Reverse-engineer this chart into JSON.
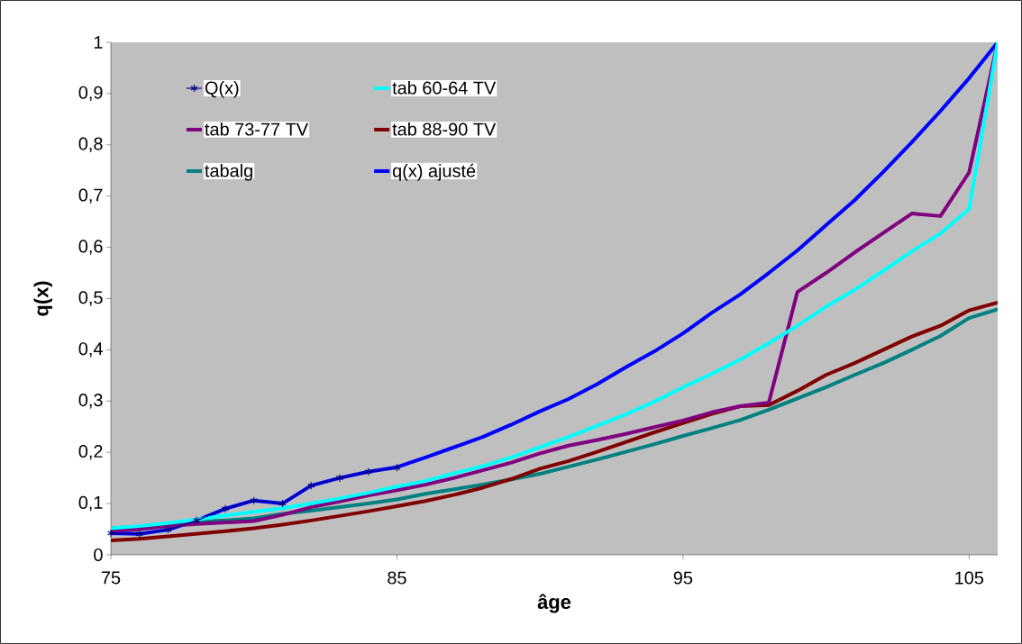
{
  "chart_data": {
    "type": "line",
    "xlabel": "âge",
    "ylabel": "q(x)",
    "x": [
      75,
      76,
      77,
      78,
      79,
      80,
      81,
      82,
      83,
      84,
      85,
      86,
      87,
      88,
      89,
      90,
      91,
      92,
      93,
      94,
      95,
      96,
      97,
      98,
      99,
      100,
      101,
      102,
      103,
      104,
      105,
      106
    ],
    "xlim": [
      75,
      106
    ],
    "xticks": [
      75,
      85,
      95,
      105
    ],
    "ylim": [
      0,
      1
    ],
    "yticks": [
      0,
      {
        "value": 0.1,
        "label": "0,1"
      },
      {
        "value": 0.2,
        "label": "0,2"
      },
      {
        "value": 0.3,
        "label": "0,3"
      },
      {
        "value": 0.4,
        "label": "0,4"
      },
      {
        "value": 0.5,
        "label": "0,5"
      },
      {
        "value": 0.6,
        "label": "0,6"
      },
      {
        "value": 0.7,
        "label": "0,7"
      },
      {
        "value": 0.8,
        "label": "0,8"
      },
      {
        "value": 0.9,
        "label": "0,9"
      },
      1
    ],
    "grid": false,
    "legend": "top left",
    "series": [
      {
        "name": "Q(x)",
        "color": "#000080",
        "marker": "cross",
        "values": [
          0.042,
          0.041,
          0.049,
          0.067,
          0.09,
          0.106,
          0.1,
          0.135,
          0.15,
          0.162,
          0.17,
          null,
          null,
          null,
          null,
          null,
          null,
          null,
          null,
          null,
          null,
          null,
          null,
          null,
          null,
          null,
          null,
          null,
          null,
          null,
          null,
          null
        ]
      },
      {
        "name": "tab 60-64 TV",
        "color": "#00ffff",
        "values": [
          0.052,
          0.056,
          0.062,
          0.069,
          0.077,
          0.084,
          0.091,
          0.1,
          0.11,
          0.121,
          0.133,
          0.144,
          0.159,
          0.173,
          0.19,
          0.21,
          0.23,
          0.252,
          0.274,
          0.299,
          0.327,
          0.353,
          0.381,
          0.413,
          0.447,
          0.484,
          0.517,
          0.554,
          0.592,
          0.627,
          0.675,
          1.0
        ]
      },
      {
        "name": "tab 73-77 TV",
        "color": "#800080",
        "values": [
          0.046,
          0.05,
          0.056,
          0.06,
          0.063,
          0.066,
          0.078,
          0.093,
          0.104,
          0.116,
          0.126,
          0.137,
          0.15,
          0.165,
          0.18,
          0.198,
          0.213,
          0.224,
          0.236,
          0.249,
          0.262,
          0.278,
          0.29,
          0.297,
          0.513,
          0.55,
          0.59,
          0.628,
          0.666,
          0.661,
          0.746,
          1.0
        ]
      },
      {
        "name": "tab 88-90 TV",
        "color": "#800000",
        "values": [
          0.028,
          0.031,
          0.036,
          0.041,
          0.046,
          0.052,
          0.059,
          0.067,
          0.076,
          0.085,
          0.095,
          0.105,
          0.117,
          0.131,
          0.148,
          0.168,
          0.183,
          0.201,
          0.22,
          0.239,
          0.257,
          0.275,
          0.29,
          0.292,
          0.32,
          0.351,
          0.374,
          0.4,
          0.426,
          0.447,
          0.477,
          0.492
        ]
      },
      {
        "name": "tabalg",
        "color": "#008080",
        "values": [
          0.052,
          0.055,
          0.061,
          0.064,
          0.067,
          0.071,
          0.08,
          0.086,
          0.093,
          0.1,
          0.108,
          0.119,
          0.128,
          0.137,
          0.147,
          0.158,
          0.172,
          0.186,
          0.201,
          0.216,
          0.232,
          0.247,
          0.263,
          0.283,
          0.305,
          0.327,
          0.351,
          0.374,
          0.4,
          0.427,
          0.462,
          0.479
        ]
      },
      {
        "name": "q(x) ajusté",
        "color": "#0000ff",
        "values": [
          0.042,
          0.041,
          0.049,
          0.067,
          0.09,
          0.106,
          0.1,
          0.135,
          0.15,
          0.162,
          0.171,
          0.19,
          0.21,
          0.23,
          0.254,
          0.28,
          0.304,
          0.333,
          0.366,
          0.397,
          0.432,
          0.472,
          0.508,
          0.55,
          0.594,
          0.643,
          0.692,
          0.747,
          0.805,
          0.866,
          0.93,
          1.0
        ]
      }
    ]
  }
}
